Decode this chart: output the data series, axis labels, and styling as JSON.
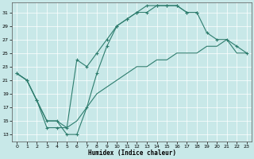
{
  "bg_color": "#c8e8e8",
  "grid_color": "#ffffff",
  "line_color": "#2e7d6e",
  "xlabel": "Humidex (Indice chaleur)",
  "xlim": [
    -0.5,
    23.5
  ],
  "ylim": [
    12,
    32.5
  ],
  "yticks": [
    13,
    15,
    17,
    19,
    21,
    23,
    25,
    27,
    29,
    31
  ],
  "xticks": [
    0,
    1,
    2,
    3,
    4,
    5,
    6,
    7,
    8,
    9,
    10,
    11,
    12,
    13,
    14,
    15,
    16,
    17,
    18,
    19,
    20,
    21,
    22,
    23
  ],
  "curve1_x": [
    0,
    1,
    2,
    3,
    4,
    5,
    6,
    7,
    8,
    9,
    10,
    11,
    12,
    13,
    14,
    15,
    16,
    17,
    18
  ],
  "curve1_y": [
    22,
    21,
    18,
    15,
    15,
    13,
    13,
    17,
    22,
    26,
    29,
    30,
    31,
    32,
    32,
    32,
    32,
    31,
    31
  ],
  "curve2_x": [
    0,
    1,
    2,
    3,
    4,
    5,
    6,
    7,
    8,
    9,
    10,
    11,
    12,
    13,
    14,
    15,
    16,
    17,
    18,
    19,
    20,
    21,
    22,
    23
  ],
  "curve2_y": [
    22,
    21,
    18,
    14,
    14,
    14,
    24,
    23,
    25,
    27,
    29,
    30,
    31,
    31,
    32,
    32,
    32,
    31,
    31,
    28,
    27,
    27,
    26,
    25
  ],
  "curve3_x": [
    0,
    1,
    2,
    3,
    4,
    5,
    6,
    7,
    8,
    9,
    10,
    11,
    12,
    13,
    14,
    15,
    16,
    17,
    18,
    19,
    20,
    21,
    22,
    23
  ],
  "curve3_y": [
    22,
    21,
    18,
    15,
    15,
    14,
    15,
    17,
    19,
    20,
    21,
    22,
    23,
    23,
    24,
    24,
    25,
    25,
    25,
    26,
    26,
    27,
    25,
    25
  ]
}
